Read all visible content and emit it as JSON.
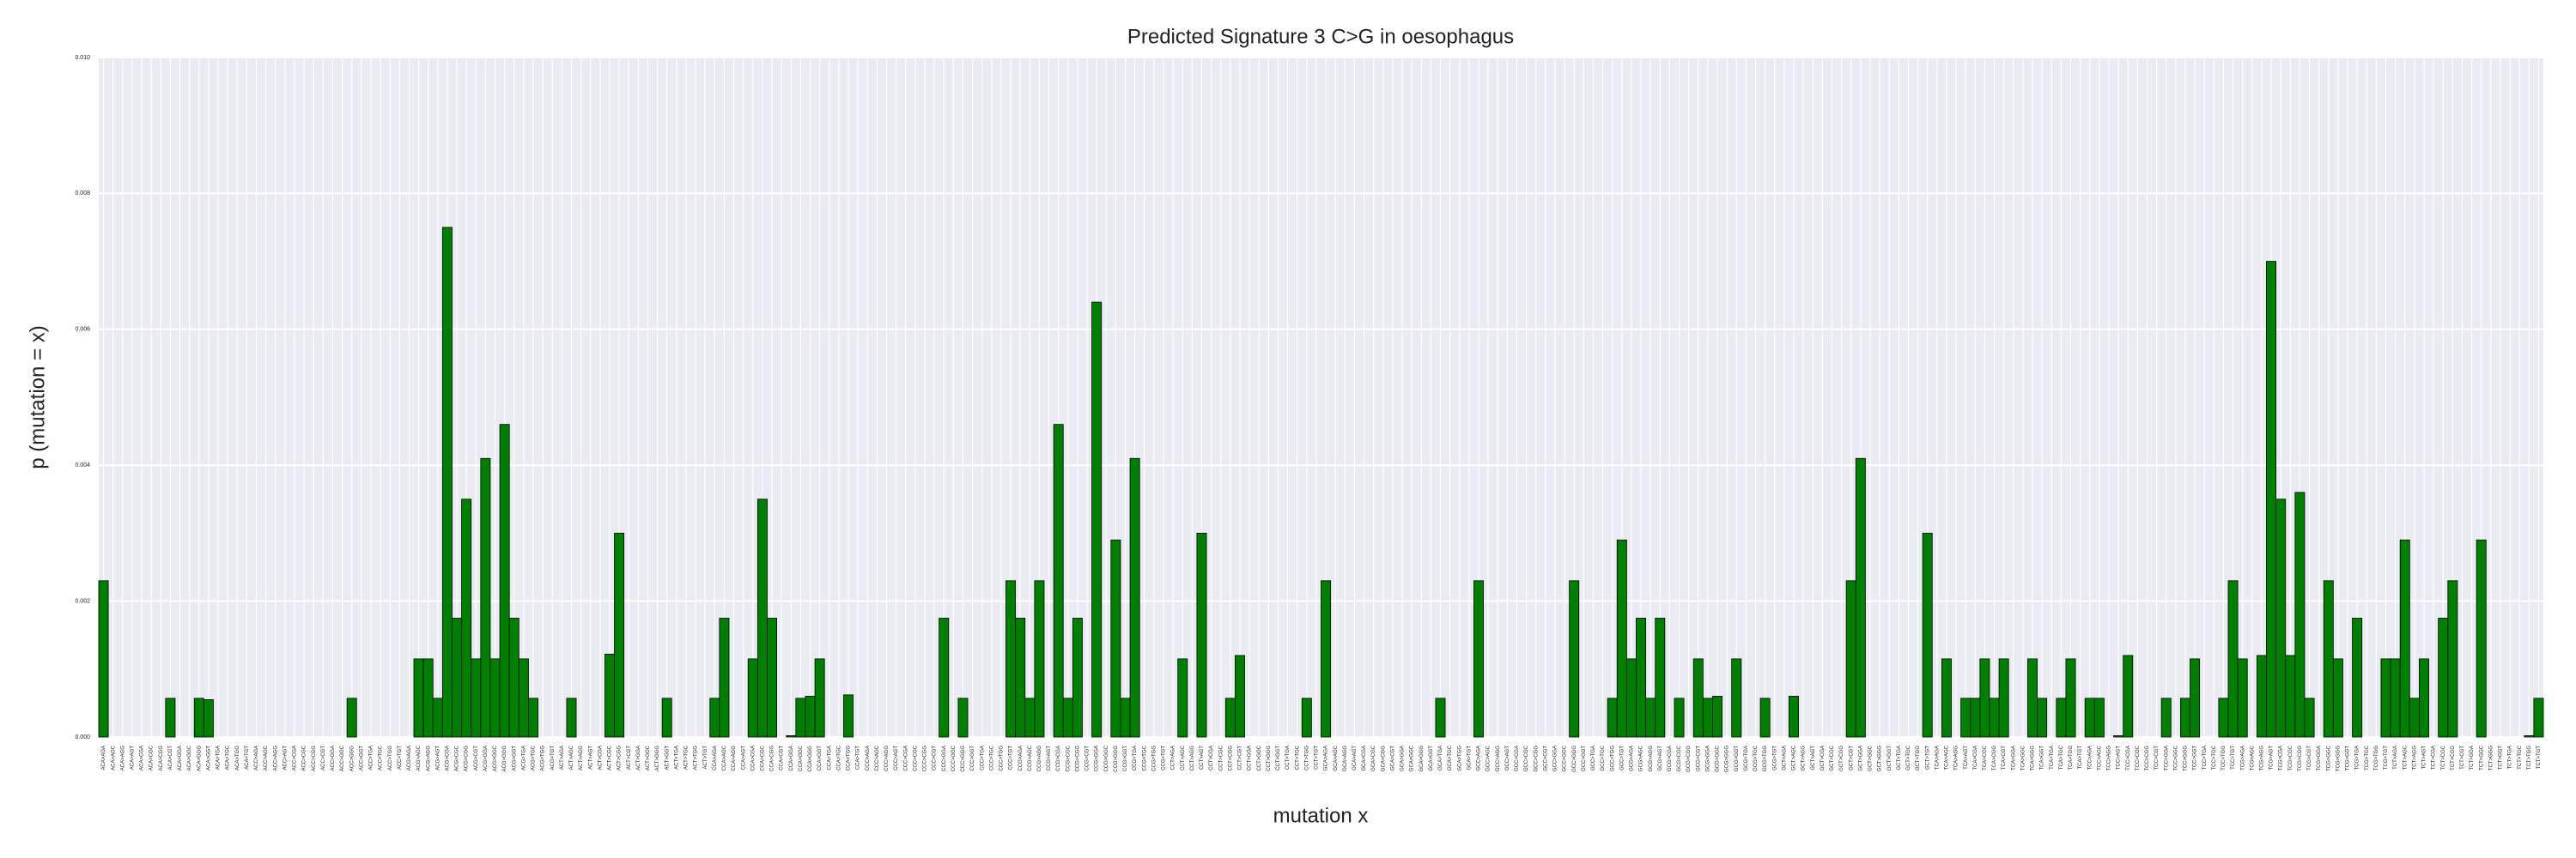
{
  "chart_data": {
    "type": "bar",
    "title": "Predicted Signature 3 C>G in oesophagus",
    "xlabel": "mutation x",
    "ylabel": "p (mutation = x)",
    "color": "#008000",
    "grid": true,
    "ylim": [
      0,
      0.01
    ],
    "yticks": [
      {
        "value": 0,
        "label": "0.000"
      },
      {
        "value": 0.002,
        "label": "0.002"
      },
      {
        "value": 0.004,
        "label": "0.004"
      },
      {
        "value": 0.006,
        "label": "0.006"
      },
      {
        "value": 0.008,
        "label": "0.008"
      },
      {
        "value": 0.01,
        "label": "0.010"
      }
    ],
    "categories": [
      "ACA>AGA",
      "ACA>AGC",
      "ACA>AGG",
      "ACA>AGT",
      "ACA>CGA",
      "ACA>CGC",
      "ACA>CGG",
      "ACA>CGT",
      "ACA>GGA",
      "ACA>GGC",
      "ACA>GGG",
      "ACA>GGT",
      "ACA>TGA",
      "ACA>TGC",
      "ACA>TGG",
      "ACA>TGT",
      "ACC>AGA",
      "ACC>AGC",
      "ACC>AGG",
      "ACC>AGT",
      "ACC>CGA",
      "ACC>CGC",
      "ACC>CGG",
      "ACC>CGT",
      "ACC>GGA",
      "ACC>GGC",
      "ACC>GGG",
      "ACC>GGT",
      "ACC>TGA",
      "ACC>TGC",
      "ACC>TGG",
      "ACC>TGT",
      "ACG>AGA",
      "ACG>AGC",
      "ACG>AGG",
      "ACG>AGT",
      "ACG>CGA",
      "ACG>CGC",
      "ACG>CGG",
      "ACG>CGT",
      "ACG>GGA",
      "ACG>GGC",
      "ACG>GGG",
      "ACG>GGT",
      "ACG>TGA",
      "ACG>TGC",
      "ACG>TGG",
      "ACG>TGT",
      "ACT>AGA",
      "ACT>AGC",
      "ACT>AGG",
      "ACT>AGT",
      "ACT>CGA",
      "ACT>CGC",
      "ACT>CGG",
      "ACT>CGT",
      "ACT>GGA",
      "ACT>GGC",
      "ACT>GGG",
      "ACT>GGT",
      "ACT>TGA",
      "ACT>TGC",
      "ACT>TGG",
      "ACT>TGT",
      "CCA>AGA",
      "CCA>AGC",
      "CCA>AGG",
      "CCA>AGT",
      "CCA>CGA",
      "CCA>CGC",
      "CCA>CGG",
      "CCA>CGT",
      "CCA>GGA",
      "CCA>GGC",
      "CCA>GGG",
      "CCA>GGT",
      "CCA>TGA",
      "CCA>TGC",
      "CCA>TGG",
      "CCA>TGT",
      "CCC>AGA",
      "CCC>AGC",
      "CCC>AGG",
      "CCC>AGT",
      "CCC>CGA",
      "CCC>CGC",
      "CCC>CGG",
      "CCC>CGT",
      "CCC>GGA",
      "CCC>GGC",
      "CCC>GGG",
      "CCC>GGT",
      "CCC>TGA",
      "CCC>TGC",
      "CCC>TGG",
      "CCC>TGT",
      "CCG>AGA",
      "CCG>AGC",
      "CCG>AGG",
      "CCG>AGT",
      "CCG>CGA",
      "CCG>CGC",
      "CCG>CGG",
      "CCG>CGT",
      "CCG>GGA",
      "CCG>GGC",
      "CCG>GGG",
      "CCG>GGT",
      "CCG>TGA",
      "CCG>TGC",
      "CCG>TGG",
      "CCG>TGT",
      "CCT>AGA",
      "CCT>AGC",
      "CCT>AGG",
      "CCT>AGT",
      "CCT>CGA",
      "CCT>CGC",
      "CCT>CGG",
      "CCT>CGT",
      "CCT>GGA",
      "CCT>GGC",
      "CCT>GGG",
      "CCT>GGT",
      "CCT>TGA",
      "CCT>TGC",
      "CCT>TGG",
      "CCT>TGT",
      "GCA>AGA",
      "GCA>AGC",
      "GCA>AGG",
      "GCA>AGT",
      "GCA>CGA",
      "GCA>CGC",
      "GCA>CGG",
      "GCA>CGT",
      "GCA>GGA",
      "GCA>GGC",
      "GCA>GGG",
      "GCA>GGT",
      "GCA>TGA",
      "GCA>TGC",
      "GCA>TGG",
      "GCA>TGT",
      "GCC>AGA",
      "GCC>AGC",
      "GCC>AGG",
      "GCC>AGT",
      "GCC>CGA",
      "GCC>CGC",
      "GCC>CGG",
      "GCC>CGT",
      "GCC>GGA",
      "GCC>GGC",
      "GCC>GGG",
      "GCC>GGT",
      "GCC>TGA",
      "GCC>TGC",
      "GCC>TGG",
      "GCC>TGT",
      "GCG>AGA",
      "GCG>AGC",
      "GCG>AGG",
      "GCG>AGT",
      "GCG>CGA",
      "GCG>CGC",
      "GCG>CGG",
      "GCG>CGT",
      "GCG>GGA",
      "GCG>GGC",
      "GCG>GGG",
      "GCG>GGT",
      "GCG>TGA",
      "GCG>TGC",
      "GCG>TGG",
      "GCG>TGT",
      "GCT>AGA",
      "GCT>AGC",
      "GCT>AGG",
      "GCT>AGT",
      "GCT>CGA",
      "GCT>CGC",
      "GCT>CGG",
      "GCT>CGT",
      "GCT>GGA",
      "GCT>GGC",
      "GCT>GGG",
      "GCT>GGT",
      "GCT>TGA",
      "GCT>TGC",
      "GCT>TGG",
      "GCT>TGT",
      "TCA>AGA",
      "TCA>AGC",
      "TCA>AGG",
      "TCA>AGT",
      "TCA>CGA",
      "TCA>CGC",
      "TCA>CGG",
      "TCA>CGT",
      "TCA>GGA",
      "TCA>GGC",
      "TCA>GGG",
      "TCA>GGT",
      "TCA>TGA",
      "TCA>TGC",
      "TCA>TGG",
      "TCA>TGT",
      "TCC>AGA",
      "TCC>AGC",
      "TCC>AGG",
      "TCC>AGT",
      "TCC>CGA",
      "TCC>CGC",
      "TCC>CGG",
      "TCC>CGT",
      "TCC>GGA",
      "TCC>GGC",
      "TCC>GGG",
      "TCC>GGT",
      "TCC>TGA",
      "TCC>TGC",
      "TCC>TGG",
      "TCC>TGT",
      "TCG>AGA",
      "TCG>AGC",
      "TCG>AGG",
      "TCG>AGT",
      "TCG>CGA",
      "TCG>CGC",
      "TCG>CGG",
      "TCG>CGT",
      "TCG>GGA",
      "TCG>GGC",
      "TCG>GGG",
      "TCG>GGT",
      "TCG>TGA",
      "TCG>TGC",
      "TCG>TGG",
      "TCG>TGT",
      "TCT>AGA",
      "TCT>AGC",
      "TCT>AGG",
      "TCT>AGT",
      "TCT>CGA",
      "TCT>CGC",
      "TCT>CGG",
      "TCT>CGT",
      "TCT>GGA",
      "TCT>GGC",
      "TCT>GGG",
      "TCT>GGT",
      "TCT>TGA",
      "TCT>TGC",
      "TCT>TGG",
      "TCT>TGT"
    ],
    "values": [
      0.0023,
      0,
      0,
      0,
      0,
      0,
      0,
      0.00057,
      0,
      0,
      0.00057,
      0.00055,
      0,
      0,
      0,
      0,
      0,
      0,
      0,
      0,
      0,
      0,
      0,
      0,
      0,
      0,
      0.00057,
      0,
      0,
      0,
      0,
      0,
      0,
      0.00115,
      0.00115,
      0.00057,
      0.0075,
      0.00175,
      0.0035,
      0.00115,
      0.0041,
      0.00115,
      0.0046,
      0.00175,
      0.00115,
      0.00057,
      0,
      0,
      0,
      0.00057,
      0,
      0,
      0,
      0.00122,
      0.003,
      0,
      0,
      0,
      0,
      0.00057,
      0,
      0,
      0,
      0,
      0.00057,
      0.00175,
      0,
      0,
      0.00115,
      0.0035,
      0.00175,
      0,
      2e-05,
      0.00057,
      0.0006,
      0.00115,
      0,
      0,
      0.00062,
      0,
      0,
      0,
      0,
      0,
      0,
      0,
      0,
      0,
      0.00175,
      0,
      0.00057,
      0,
      0,
      0,
      0,
      0.0023,
      0.00175,
      0.00057,
      0.0023,
      0,
      0.0046,
      0.00057,
      0.00175,
      0,
      0.0064,
      0,
      0.0029,
      0.00057,
      0.0041,
      0,
      0,
      0,
      0,
      0.00115,
      0,
      0.003,
      0,
      0,
      0.00057,
      0.0012,
      0,
      0,
      0,
      0,
      0,
      0,
      0.00057,
      0,
      0.0023,
      0,
      0,
      0,
      0,
      0,
      0,
      0,
      0,
      0,
      0,
      0,
      0.00057,
      0,
      0,
      0,
      0.0023,
      0,
      0,
      0,
      0,
      0,
      0,
      0,
      0,
      0,
      0.0023,
      0,
      0,
      0,
      0.00057,
      0.0029,
      0.00115,
      0.00175,
      0.00057,
      0.00175,
      0,
      0.00057,
      0,
      0.00115,
      0.00057,
      0.0006,
      0,
      0.00115,
      0,
      0,
      0.00057,
      0,
      0,
      0.0006,
      0,
      0,
      0,
      0,
      0,
      0.0023,
      0.0041,
      0,
      0,
      0,
      0,
      0,
      0,
      0.003,
      0,
      0.00115,
      0,
      0.00057,
      0.00057,
      0.00115,
      0.00057,
      0.00115,
      0,
      0,
      0.00115,
      0.00057,
      0,
      0.00057,
      0.00115,
      0,
      0.00057,
      0.00057,
      0,
      2e-05,
      0.0012,
      0,
      0,
      0,
      0.00057,
      0,
      0.00057,
      0.00115,
      0,
      0,
      0.00057,
      0.0023,
      0.00115,
      0,
      0.0012,
      0.007,
      0.0035,
      0.0012,
      0.0036,
      0.00057,
      0,
      0.0023,
      0.00115,
      0,
      0.00175,
      0,
      0,
      0.00115,
      0.00115,
      0.0029,
      0.00057,
      0.00115,
      0,
      0.00175,
      0.0023,
      0,
      0,
      0.0029,
      0,
      0,
      0,
      0,
      2e-05,
      0.00057
    ]
  }
}
